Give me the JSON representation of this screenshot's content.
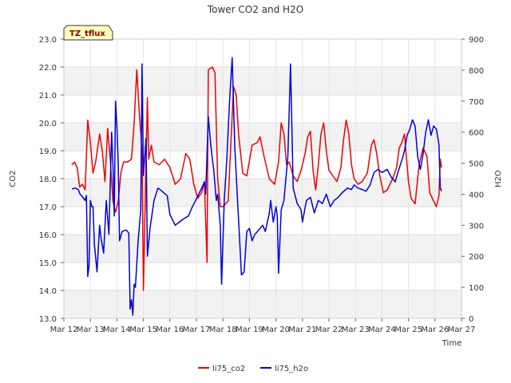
{
  "chart_data": {
    "type": "line",
    "title": "Tower CO2 and H2O",
    "badge": "TZ_tflux",
    "xlabel": "Time",
    "ylabel_left": "CO2",
    "ylabel_right": "H2O",
    "x_range": [
      12,
      27
    ],
    "x_ticks": [
      {
        "v": 12,
        "label": "Mar 12"
      },
      {
        "v": 13,
        "label": "Mar 13"
      },
      {
        "v": 14,
        "label": "Mar 14"
      },
      {
        "v": 15,
        "label": "Mar 15"
      },
      {
        "v": 16,
        "label": "Mar 16"
      },
      {
        "v": 17,
        "label": "Mar 17"
      },
      {
        "v": 18,
        "label": "Mar 18"
      },
      {
        "v": 19,
        "label": "Mar 19"
      },
      {
        "v": 20,
        "label": "Mar 20"
      },
      {
        "v": 21,
        "label": "Mar 21"
      },
      {
        "v": 22,
        "label": "Mar 22"
      },
      {
        "v": 23,
        "label": "Mar 23"
      },
      {
        "v": 24,
        "label": "Mar 24"
      },
      {
        "v": 25,
        "label": "Mar 25"
      },
      {
        "v": 26,
        "label": "Mar 26"
      },
      {
        "v": 27,
        "label": "Mar 27"
      }
    ],
    "ylim_left": [
      13.0,
      23.0
    ],
    "y_ticks_left": [
      "13.0",
      "14.0",
      "15.0",
      "16.0",
      "17.0",
      "18.0",
      "19.0",
      "20.0",
      "21.0",
      "22.0",
      "23.0"
    ],
    "ylim_right": [
      0,
      900
    ],
    "y_ticks_right": [
      "0",
      "100",
      "200",
      "300",
      "400",
      "500",
      "600",
      "700",
      "800",
      "900"
    ],
    "grid": true,
    "legend_position": "bottom-center",
    "series": [
      {
        "name": "li75_co2",
        "axis": "left",
        "color": "#ee0000",
        "points": [
          [
            12.3,
            18.5
          ],
          [
            12.4,
            18.6
          ],
          [
            12.5,
            18.4
          ],
          [
            12.6,
            17.7
          ],
          [
            12.7,
            17.8
          ],
          [
            12.8,
            17.6
          ],
          [
            12.9,
            20.1
          ],
          [
            13.0,
            19.3
          ],
          [
            13.1,
            18.2
          ],
          [
            13.2,
            18.6
          ],
          [
            13.35,
            19.6
          ],
          [
            13.45,
            19.0
          ],
          [
            13.55,
            17.9
          ],
          [
            13.65,
            19.8
          ],
          [
            13.75,
            18.7
          ],
          [
            13.85,
            17.2
          ],
          [
            13.95,
            16.8
          ],
          [
            14.05,
            17.2
          ],
          [
            14.15,
            18.2
          ],
          [
            14.25,
            18.6
          ],
          [
            14.4,
            18.6
          ],
          [
            14.55,
            18.7
          ],
          [
            14.65,
            20.0
          ],
          [
            14.75,
            21.9
          ],
          [
            14.85,
            20.3
          ],
          [
            14.95,
            19.0
          ],
          [
            15.0,
            14.0
          ],
          [
            15.1,
            18.6
          ],
          [
            15.15,
            20.9
          ],
          [
            15.2,
            18.7
          ],
          [
            15.3,
            19.2
          ],
          [
            15.4,
            18.6
          ],
          [
            15.6,
            18.5
          ],
          [
            15.8,
            18.7
          ],
          [
            16.0,
            18.4
          ],
          [
            16.2,
            17.8
          ],
          [
            16.4,
            18.0
          ],
          [
            16.6,
            18.9
          ],
          [
            16.75,
            18.7
          ],
          [
            16.9,
            17.8
          ],
          [
            17.05,
            17.3
          ],
          [
            17.2,
            17.5
          ],
          [
            17.3,
            17.9
          ],
          [
            17.4,
            15.0
          ],
          [
            17.45,
            21.9
          ],
          [
            17.6,
            22.0
          ],
          [
            17.7,
            21.8
          ],
          [
            17.8,
            18.0
          ],
          [
            17.9,
            17.0
          ],
          [
            18.0,
            17.0
          ],
          [
            18.2,
            17.2
          ],
          [
            18.4,
            21.3
          ],
          [
            18.5,
            21.0
          ],
          [
            18.6,
            19.5
          ],
          [
            18.75,
            18.2
          ],
          [
            18.9,
            18.1
          ],
          [
            19.1,
            19.2
          ],
          [
            19.3,
            19.3
          ],
          [
            19.4,
            19.5
          ],
          [
            19.55,
            18.8
          ],
          [
            19.75,
            18.0
          ],
          [
            19.95,
            17.8
          ],
          [
            20.1,
            18.6
          ],
          [
            20.2,
            20.0
          ],
          [
            20.3,
            19.6
          ],
          [
            20.4,
            18.5
          ],
          [
            20.5,
            18.6
          ],
          [
            20.65,
            18.1
          ],
          [
            20.8,
            17.9
          ],
          [
            20.95,
            18.3
          ],
          [
            21.1,
            18.9
          ],
          [
            21.2,
            19.5
          ],
          [
            21.3,
            19.7
          ],
          [
            21.4,
            18.3
          ],
          [
            21.5,
            17.6
          ],
          [
            21.6,
            18.5
          ],
          [
            21.7,
            19.6
          ],
          [
            21.8,
            20.0
          ],
          [
            21.9,
            19.0
          ],
          [
            22.0,
            18.3
          ],
          [
            22.15,
            18.1
          ],
          [
            22.3,
            17.9
          ],
          [
            22.45,
            18.4
          ],
          [
            22.55,
            19.4
          ],
          [
            22.65,
            20.1
          ],
          [
            22.75,
            19.6
          ],
          [
            22.85,
            18.5
          ],
          [
            22.95,
            18.0
          ],
          [
            23.1,
            17.8
          ],
          [
            23.25,
            17.9
          ],
          [
            23.45,
            18.2
          ],
          [
            23.6,
            19.2
          ],
          [
            23.7,
            19.4
          ],
          [
            23.8,
            18.9
          ],
          [
            23.9,
            18.2
          ],
          [
            24.05,
            17.5
          ],
          [
            24.2,
            17.6
          ],
          [
            24.4,
            18.0
          ],
          [
            24.55,
            18.4
          ],
          [
            24.65,
            19.1
          ],
          [
            24.75,
            19.3
          ],
          [
            24.85,
            19.6
          ],
          [
            24.9,
            19.0
          ],
          [
            25.0,
            17.9
          ],
          [
            25.1,
            17.3
          ],
          [
            25.25,
            17.1
          ],
          [
            25.4,
            18.5
          ],
          [
            25.55,
            19.1
          ],
          [
            25.7,
            18.8
          ],
          [
            25.8,
            17.5
          ],
          [
            25.95,
            17.2
          ],
          [
            26.05,
            17.0
          ],
          [
            26.15,
            17.4
          ],
          [
            26.2,
            18.7
          ],
          [
            26.25,
            18.4
          ]
        ]
      },
      {
        "name": "li75_h2o",
        "axis": "right",
        "color": "#0000dd",
        "points": [
          [
            12.3,
            417
          ],
          [
            12.45,
            420
          ],
          [
            12.55,
            414
          ],
          [
            12.6,
            402
          ],
          [
            12.7,
            392
          ],
          [
            12.8,
            380
          ],
          [
            12.85,
            396
          ],
          [
            12.9,
            135
          ],
          [
            12.95,
            170
          ],
          [
            13.0,
            380
          ],
          [
            13.05,
            360
          ],
          [
            13.1,
            360
          ],
          [
            13.15,
            240
          ],
          [
            13.25,
            150
          ],
          [
            13.35,
            300
          ],
          [
            13.4,
            260
          ],
          [
            13.5,
            210
          ],
          [
            13.6,
            380
          ],
          [
            13.7,
            270
          ],
          [
            13.8,
            600
          ],
          [
            13.85,
            500
          ],
          [
            13.9,
            330
          ],
          [
            13.95,
            700
          ],
          [
            14.0,
            620
          ],
          [
            14.05,
            500
          ],
          [
            14.1,
            250
          ],
          [
            14.2,
            280
          ],
          [
            14.35,
            285
          ],
          [
            14.45,
            275
          ],
          [
            14.5,
            30
          ],
          [
            14.55,
            60
          ],
          [
            14.6,
            10
          ],
          [
            14.65,
            110
          ],
          [
            14.7,
            100
          ],
          [
            14.8,
            250
          ],
          [
            14.9,
            350
          ],
          [
            14.95,
            820
          ],
          [
            15.0,
            460
          ],
          [
            15.1,
            580
          ],
          [
            15.15,
            200
          ],
          [
            15.25,
            290
          ],
          [
            15.4,
            380
          ],
          [
            15.55,
            420
          ],
          [
            15.7,
            410
          ],
          [
            15.9,
            395
          ],
          [
            16.0,
            335
          ],
          [
            16.2,
            300
          ],
          [
            16.35,
            310
          ],
          [
            16.5,
            320
          ],
          [
            16.7,
            330
          ],
          [
            16.85,
            360
          ],
          [
            17.0,
            385
          ],
          [
            17.2,
            420
          ],
          [
            17.3,
            440
          ],
          [
            17.35,
            400
          ],
          [
            17.45,
            650
          ],
          [
            17.55,
            550
          ],
          [
            17.65,
            480
          ],
          [
            17.75,
            380
          ],
          [
            17.8,
            400
          ],
          [
            17.9,
            300
          ],
          [
            17.95,
            110
          ],
          [
            18.05,
            380
          ],
          [
            18.15,
            520
          ],
          [
            18.25,
            700
          ],
          [
            18.35,
            840
          ],
          [
            18.45,
            550
          ],
          [
            18.55,
            380
          ],
          [
            18.65,
            220
          ],
          [
            18.7,
            140
          ],
          [
            18.8,
            150
          ],
          [
            18.9,
            280
          ],
          [
            19.0,
            290
          ],
          [
            19.1,
            250
          ],
          [
            19.2,
            270
          ],
          [
            19.35,
            285
          ],
          [
            19.5,
            300
          ],
          [
            19.6,
            280
          ],
          [
            19.75,
            340
          ],
          [
            19.8,
            380
          ],
          [
            19.9,
            310
          ],
          [
            20.0,
            360
          ],
          [
            20.05,
            330
          ],
          [
            20.1,
            145
          ],
          [
            20.2,
            350
          ],
          [
            20.3,
            380
          ],
          [
            20.45,
            520
          ],
          [
            20.55,
            820
          ],
          [
            20.65,
            420
          ],
          [
            20.8,
            370
          ],
          [
            20.95,
            350
          ],
          [
            21.0,
            310
          ],
          [
            21.15,
            380
          ],
          [
            21.3,
            390
          ],
          [
            21.45,
            340
          ],
          [
            21.6,
            380
          ],
          [
            21.75,
            370
          ],
          [
            21.9,
            400
          ],
          [
            22.05,
            360
          ],
          [
            22.2,
            380
          ],
          [
            22.35,
            390
          ],
          [
            22.5,
            405
          ],
          [
            22.7,
            420
          ],
          [
            22.85,
            415
          ],
          [
            22.95,
            430
          ],
          [
            23.1,
            420
          ],
          [
            23.25,
            415
          ],
          [
            23.4,
            410
          ],
          [
            23.55,
            430
          ],
          [
            23.7,
            470
          ],
          [
            23.85,
            480
          ],
          [
            24.0,
            470
          ],
          [
            24.2,
            480
          ],
          [
            24.35,
            455
          ],
          [
            24.5,
            440
          ],
          [
            24.6,
            470
          ],
          [
            24.75,
            510
          ],
          [
            24.85,
            540
          ],
          [
            24.95,
            590
          ],
          [
            25.05,
            610
          ],
          [
            25.15,
            640
          ],
          [
            25.25,
            620
          ],
          [
            25.35,
            520
          ],
          [
            25.45,
            480
          ],
          [
            25.55,
            530
          ],
          [
            25.65,
            600
          ],
          [
            25.75,
            640
          ],
          [
            25.85,
            590
          ],
          [
            25.95,
            620
          ],
          [
            26.05,
            610
          ],
          [
            26.15,
            560
          ],
          [
            26.2,
            420
          ],
          [
            26.25,
            410
          ]
        ]
      }
    ]
  }
}
